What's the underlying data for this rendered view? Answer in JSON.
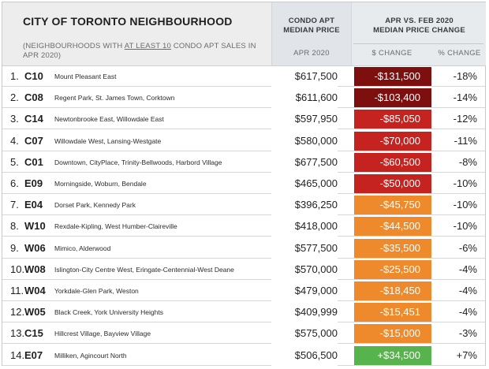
{
  "header": {
    "title": "CITY OF TORONTO NEIGHBOURHOOD",
    "subtitle_pre": "(NEIGHBOURHOODS WITH ",
    "subtitle_underlined": "AT LEAST 10",
    "subtitle_post": " CONDO APT SALES IN APR 2020)",
    "condo_col_line1": "CONDO APT",
    "condo_col_line2": "MEDIAN PRICE",
    "condo_sub": "APR 2020",
    "change_col_line1": "APR VS. FEB 2020",
    "change_col_line2": "MEDIAN PRICE CHANGE",
    "dollar_sub": "$ CHANGE",
    "pct_sub": "% CHANGE"
  },
  "colors": {
    "dark_red": "#7d0f0f",
    "red": "#c5231f",
    "orange": "#ee8a2b",
    "green": "#57b34b"
  },
  "rows": [
    {
      "num": "1.",
      "code": "C10",
      "name": "Mount Pleasant East",
      "price": "$617,500",
      "change": "-$131,500",
      "pct": "-18%",
      "color": "#7d0f0f"
    },
    {
      "num": "2.",
      "code": "C08",
      "name": "Regent Park, St. James Town, Corktown",
      "price": "$611,600",
      "change": "-$103,400",
      "pct": "-14%",
      "color": "#7d0f0f"
    },
    {
      "num": "3.",
      "code": "C14",
      "name": "Newtonbrooke East, Willowdale East",
      "price": "$597,950",
      "change": "-$85,050",
      "pct": "-12%",
      "color": "#c5231f"
    },
    {
      "num": "4.",
      "code": "C07",
      "name": "Willowdale West, Lansing-Westgate",
      "price": "$580,000",
      "change": "-$70,000",
      "pct": "-11%",
      "color": "#c5231f"
    },
    {
      "num": "5.",
      "code": "C01",
      "name": "Downtown, CityPlace, Trinity-Bellwoods, Harbord Village",
      "price": "$677,500",
      "change": "-$60,500",
      "pct": "-8%",
      "color": "#c5231f"
    },
    {
      "num": "6.",
      "code": "E09",
      "name": "Morningside, Woburn, Bendale",
      "price": "$465,000",
      "change": "-$50,000",
      "pct": "-10%",
      "color": "#c5231f"
    },
    {
      "num": "7.",
      "code": "E04",
      "name": "Dorset Park, Kennedy Park",
      "price": "$396,250",
      "change": "-$45,750",
      "pct": "-10%",
      "color": "#ee8a2b"
    },
    {
      "num": "8.",
      "code": "W10",
      "name": "Rexdale-Kipling, West Humber-Claireville",
      "price": "$418,000",
      "change": "-$44,500",
      "pct": "-10%",
      "color": "#ee8a2b"
    },
    {
      "num": "9.",
      "code": "W06",
      "name": "Mimico, Alderwood",
      "price": "$577,500",
      "change": "-$35,500",
      "pct": "-6%",
      "color": "#ee8a2b"
    },
    {
      "num": "10.",
      "code": "W08",
      "name": "Islington-City Centre West, Eringate-Centennial-West Deane",
      "price": "$570,000",
      "change": "-$25,500",
      "pct": "-4%",
      "color": "#ee8a2b"
    },
    {
      "num": "11.",
      "code": "W04",
      "name": "Yorkdale-Glen Park, Weston",
      "price": "$479,000",
      "change": "-$18,450",
      "pct": "-4%",
      "color": "#ee8a2b"
    },
    {
      "num": "12.",
      "code": "W05",
      "name": "Black Creek, York University Heights",
      "price": "$409,999",
      "change": "-$15,451",
      "pct": "-4%",
      "color": "#ee8a2b"
    },
    {
      "num": "13.",
      "code": "C15",
      "name": "Hillcrest Village, Bayview Village",
      "price": "$575,000",
      "change": "-$15,000",
      "pct": "-3%",
      "color": "#ee8a2b"
    },
    {
      "num": "14.",
      "code": "E07",
      "name": "Milliken, Agincourt North",
      "price": "$506,500",
      "change": "+$34,500",
      "pct": "+7%",
      "color": "#57b34b"
    }
  ]
}
